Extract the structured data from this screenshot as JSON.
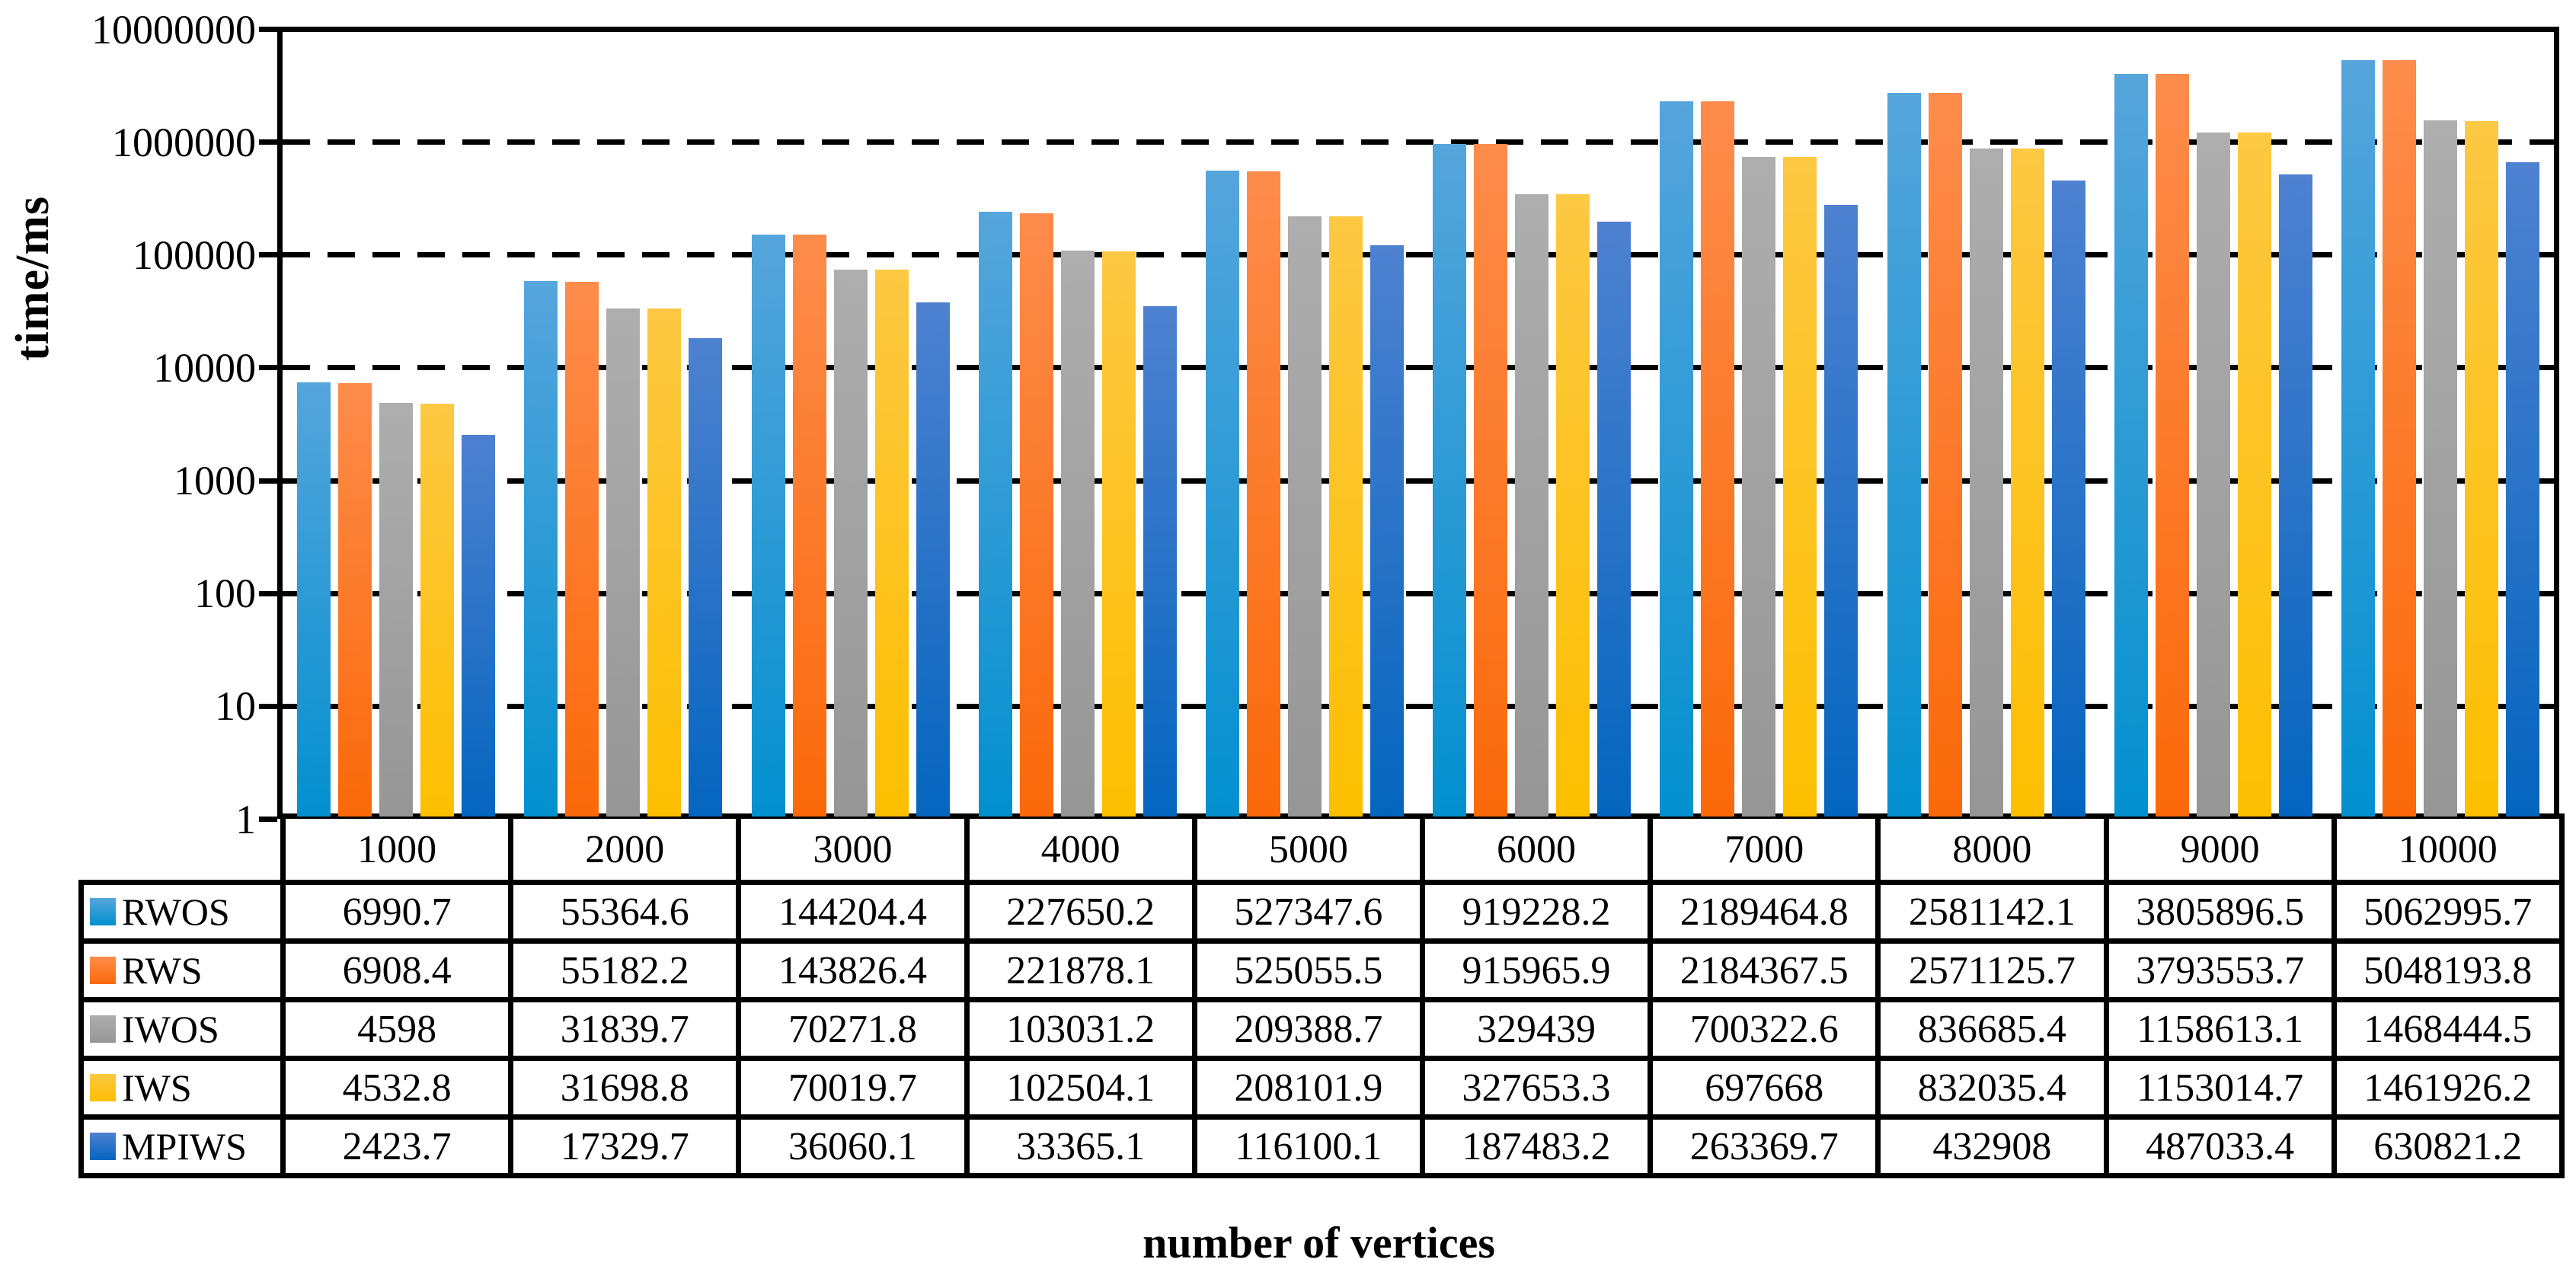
{
  "chart_data": {
    "type": "bar",
    "title": "",
    "ylabel": "time/ms",
    "xlabel": "number of vertices",
    "y_scale": "log10",
    "ylim": [
      1,
      10000000
    ],
    "y_tick_labels": [
      "10000000",
      "1000000",
      "100000",
      "10000",
      "1000",
      "100",
      "10",
      "1"
    ],
    "grid": "horizontal dashed lines at each decade",
    "legend_position": "table rows below chart",
    "categories": [
      "1000",
      "2000",
      "3000",
      "4000",
      "5000",
      "6000",
      "7000",
      "8000",
      "9000",
      "10000"
    ],
    "series": [
      {
        "name": "RWOS",
        "color_top": "#56A5DC",
        "color_bottom": "#0390CF",
        "values": [
          6990.7,
          55364.6,
          144204.4,
          227650.2,
          527347.6,
          919228.2,
          2189464.8,
          2581142.1,
          3805896.5,
          5062995.7
        ]
      },
      {
        "name": "RWS",
        "color_top": "#FD8C4C",
        "color_bottom": "#FB6909",
        "values": [
          6908.4,
          55182.2,
          143826.4,
          221878.1,
          525055.5,
          915965.9,
          2184367.5,
          2571125.7,
          3793553.7,
          5048193.8
        ]
      },
      {
        "name": "IWOS",
        "color_top": "#AEAEAE",
        "color_bottom": "#969696",
        "values": [
          4598,
          31839.7,
          70271.8,
          103031.2,
          209388.7,
          329439,
          700322.6,
          836685.4,
          1158613.1,
          1468444.5
        ]
      },
      {
        "name": "IWS",
        "color_top": "#FDC843",
        "color_bottom": "#FCBF00",
        "values": [
          4532.8,
          31698.8,
          70019.7,
          102504.1,
          208101.9,
          327653.3,
          697668,
          832035.4,
          1153014.7,
          1461926.2
        ]
      },
      {
        "name": "MPIWS",
        "color_top": "#4E81D0",
        "color_bottom": "#0465BF",
        "values": [
          2423.7,
          17329.7,
          36060.1,
          33365.1,
          116100.1,
          187483.2,
          263369.7,
          432908,
          487033.4,
          630821.2
        ]
      }
    ]
  }
}
